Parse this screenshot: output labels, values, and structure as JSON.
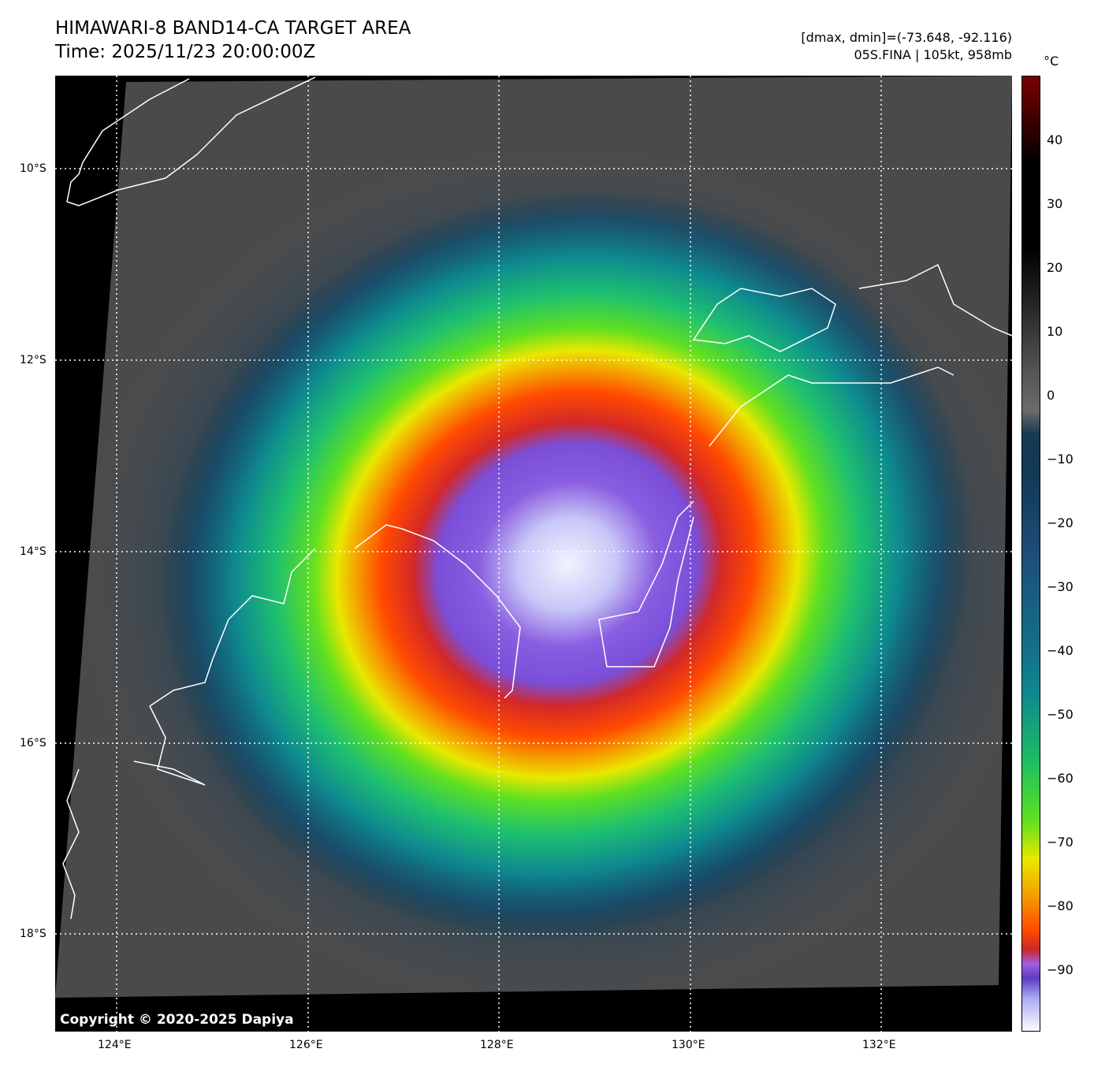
{
  "header": {
    "title": "HIMAWARI-8 BAND14-CA TARGET AREA",
    "time": "Time: 2025/11/23 20:00:00Z",
    "dminmax": "[dmax, dmin]=(-73.648, -92.116)",
    "storm": "05S.FINA | 105kt, 958mb"
  },
  "map": {
    "lon_labels": [
      "124°E",
      "126°E",
      "128°E",
      "130°E",
      "132°E"
    ],
    "lat_labels": [
      "10°S",
      "12°S",
      "14°S",
      "16°S",
      "18°S"
    ],
    "copyright": "Copyright © 2020-2025 Dapiya"
  },
  "colorbar": {
    "unit": "°C",
    "range": [
      -100,
      50
    ],
    "ticks": [
      "40",
      "30",
      "20",
      "10",
      "0",
      "−10",
      "−20",
      "−30",
      "−40",
      "−50",
      "−60",
      "−70",
      "−80",
      "−90"
    ]
  }
}
